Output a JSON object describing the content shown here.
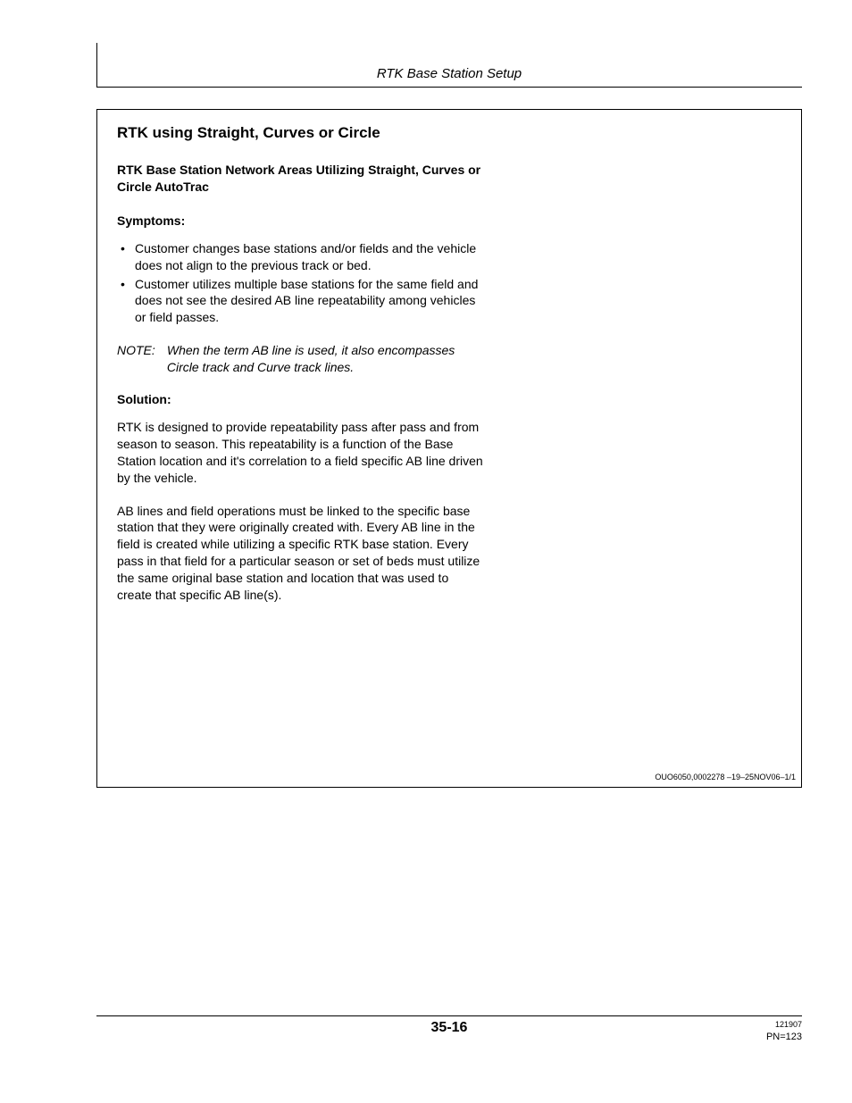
{
  "header": {
    "title": "RTK Base Station Setup"
  },
  "content": {
    "section_title": "RTK using Straight, Curves or Circle",
    "subtitle": "RTK Base Station Network Areas Utilizing Straight, Curves or Circle AutoTrac",
    "symptoms_label": "Symptoms:",
    "symptoms": [
      "Customer changes base stations and/or fields and the vehicle does not align to the previous track or bed.",
      "Customer utilizes multiple base stations for the same field and does not see the desired AB line repeatability among vehicles or field passes."
    ],
    "note_label": "NOTE:",
    "note_body": "When the term AB line is used, it also encompasses Circle track and Curve track lines.",
    "solution_label": "Solution:",
    "paragraphs": [
      "RTK is designed to provide repeatability pass after pass and from season to season. This repeatability is a function of the Base Station location and it's correlation to a field specific AB line driven by the vehicle.",
      "AB lines and field operations must be linked to the specific base station that they were originally created with. Every AB line in the field is created while utilizing a specific RTK base station. Every pass in that field for a particular season or set of beds must utilize the same original base station and location that was used to create that specific AB line(s)."
    ],
    "doc_ref": "OUO6050,0002278  –19–25NOV06–1/1"
  },
  "footer": {
    "page_num": "35-16",
    "date_code": "121907",
    "pn": "PN=123"
  }
}
